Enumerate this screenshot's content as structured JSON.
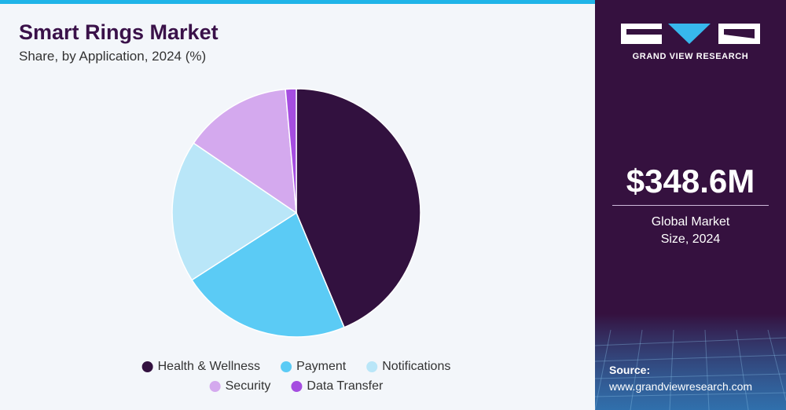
{
  "chart_data": {
    "type": "pie",
    "title": "Smart Rings Market",
    "subtitle": "Share, by Application, 2024 (%)",
    "categories": [
      "Health & Wellness",
      "Payment",
      "Notifications",
      "Security",
      "Data Transfer"
    ],
    "values": [
      43.7,
      22.2,
      18.6,
      14.1,
      1.4
    ],
    "colors": [
      "#32113f",
      "#5bcbf5",
      "#b9e6f8",
      "#d4a9ee",
      "#a54de0"
    ]
  },
  "sidebar": {
    "brand": "GRAND VIEW RESEARCH",
    "market_size": "$348.6M",
    "market_size_label": "Global Market Size, 2024",
    "source_label": "Source:",
    "source_url": "www.grandviewresearch.com"
  }
}
